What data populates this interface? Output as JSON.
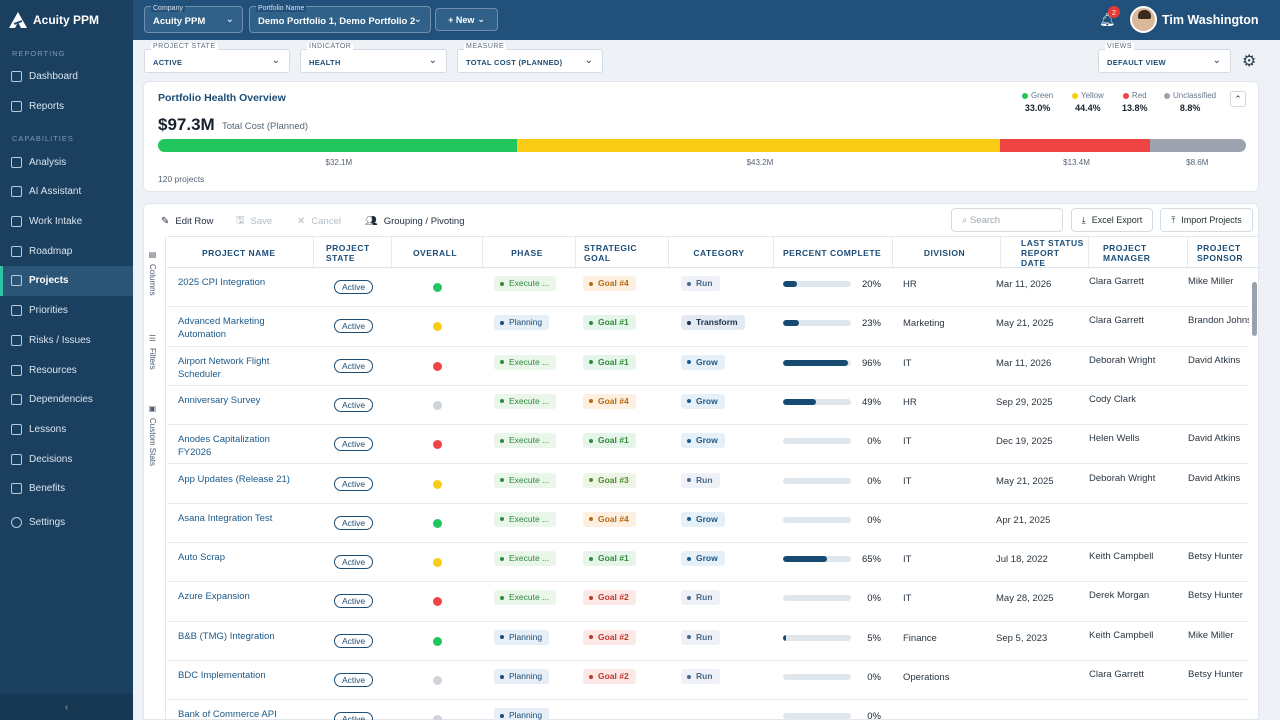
{
  "app": {
    "name": "Acuity PPM"
  },
  "sidebar": {
    "sections": [
      "REPORTING",
      "CAPABILITIES"
    ],
    "reporting": [
      {
        "label": "Dashboard"
      },
      {
        "label": "Reports"
      }
    ],
    "capabilities": [
      {
        "label": "Analysis"
      },
      {
        "label": "AI Assistant"
      },
      {
        "label": "Work Intake"
      },
      {
        "label": "Roadmap"
      },
      {
        "label": "Projects",
        "active": true
      },
      {
        "label": "Priorities"
      },
      {
        "label": "Risks / Issues"
      },
      {
        "label": "Resources"
      },
      {
        "label": "Dependencies"
      },
      {
        "label": "Lessons"
      },
      {
        "label": "Decisions"
      },
      {
        "label": "Benefits"
      }
    ],
    "settings": "Settings",
    "collapse": "‹"
  },
  "topbar": {
    "company_label": "Company",
    "company": "Acuity PPM",
    "portfolio_label": "Portfolio Name",
    "portfolio": "Demo Portfolio 1, Demo Portfolio 2",
    "new_button": "+ New",
    "notifications": "2",
    "user": "Tim Washington"
  },
  "filters": {
    "project_state": {
      "label": "PROJECT STATE",
      "value": "ACTIVE"
    },
    "indicator": {
      "label": "INDICATOR",
      "value": "HEALTH"
    },
    "measure": {
      "label": "MEASURE",
      "value": "TOTAL COST (PLANNED)"
    },
    "views": {
      "label": "VIEWS",
      "value": "DEFAULT VIEW"
    }
  },
  "health": {
    "title": "Portfolio Health Overview",
    "total": "$97.3M",
    "total_label": "Total Cost (Planned)",
    "count": "120 projects",
    "segments": [
      {
        "name": "Green",
        "pct": "33.0%",
        "value": "$32.1M",
        "frac": 0.33,
        "color": "#22c55e"
      },
      {
        "name": "Yellow",
        "pct": "44.4%",
        "value": "$43.2M",
        "frac": 0.444,
        "color": "#facc15"
      },
      {
        "name": "Red",
        "pct": "13.8%",
        "value": "$13.4M",
        "frac": 0.138,
        "color": "#ef4444"
      },
      {
        "name": "Unclassified",
        "pct": "8.8%",
        "value": "$8.6M",
        "frac": 0.088,
        "color": "#9ca3af"
      }
    ]
  },
  "toolbar": {
    "edit": "Edit Row",
    "save": "Save",
    "cancel": "Cancel",
    "grouping": "Grouping / Pivoting",
    "search_placeholder": "Search",
    "excel": "Excel Export",
    "import": "Import Projects"
  },
  "sidetabs": [
    "Columns",
    "Filters",
    "Custom Stats"
  ],
  "columns": [
    "PROJECT NAME",
    "PROJECT STATE",
    "OVERALL",
    "PHASE",
    "STRATEGIC GOAL",
    "CATEGORY",
    "PERCENT COMPLETE",
    "DIVISION",
    "LAST STATUS REPORT DATE",
    "PROJECT MANAGER",
    "PROJECT SPONSOR"
  ],
  "colors": {
    "green": "#22c55e",
    "yellow": "#facc15",
    "red": "#ef4444",
    "grey": "#cfd4da"
  },
  "rows": [
    {
      "name": "2025 CPI Integration",
      "state": "Active",
      "overall": "green",
      "phase": "Execute ...",
      "goal": "Goal #4",
      "category": "Run",
      "pct": 20,
      "pct_label": "20%",
      "division": "HR",
      "date": "Mar 11, 2026",
      "manager": "Clara Garrett",
      "sponsor": "Mike Miller"
    },
    {
      "name": "Advanced Marketing Automation",
      "state": "Active",
      "overall": "yellow",
      "phase": "Planning",
      "goal": "Goal #1",
      "category": "Transform",
      "pct": 23,
      "pct_label": "23%",
      "division": "Marketing",
      "date": "May 21, 2025",
      "manager": "Clara Garrett",
      "sponsor": "Brandon Johns"
    },
    {
      "name": "Airport Network Flight Scheduler",
      "state": "Active",
      "overall": "red",
      "phase": "Execute ...",
      "goal": "Goal #1",
      "category": "Grow",
      "pct": 96,
      "pct_label": "96%",
      "division": "IT",
      "date": "Mar 11, 2026",
      "manager": "Deborah Wright",
      "sponsor": "David Atkins"
    },
    {
      "name": "Anniversary Survey",
      "state": "Active",
      "overall": "grey",
      "phase": "Execute ...",
      "goal": "Goal #4",
      "category": "Grow",
      "pct": 49,
      "pct_label": "49%",
      "division": "HR",
      "date": "Sep 29, 2025",
      "manager": "Cody Clark",
      "sponsor": ""
    },
    {
      "name": "Anodes Capitalization FY2026",
      "state": "Active",
      "overall": "red",
      "phase": "Execute ...",
      "goal": "Goal #1",
      "category": "Grow",
      "pct": 0,
      "pct_label": "0%",
      "division": "IT",
      "date": "Dec 19, 2025",
      "manager": "Helen Wells",
      "sponsor": "David Atkins"
    },
    {
      "name": "App Updates (Release 21)",
      "state": "Active",
      "overall": "yellow",
      "phase": "Execute ...",
      "goal": "Goal #3",
      "category": "Run",
      "pct": 0,
      "pct_label": "0%",
      "division": "IT",
      "date": "May 21, 2025",
      "manager": "Deborah Wright",
      "sponsor": "David Atkins"
    },
    {
      "name": "Asana Integration Test",
      "state": "Active",
      "overall": "green",
      "phase": "Execute ...",
      "goal": "Goal #4",
      "category": "Grow",
      "pct": 0,
      "pct_label": "0%",
      "division": "",
      "date": "Apr 21, 2025",
      "manager": "",
      "sponsor": ""
    },
    {
      "name": "Auto Scrap",
      "state": "Active",
      "overall": "yellow",
      "phase": "Execute ...",
      "goal": "Goal #1",
      "category": "Grow",
      "pct": 65,
      "pct_label": "65%",
      "division": "IT",
      "date": "Jul 18, 2022",
      "manager": "Keith Campbell",
      "sponsor": "Betsy Hunter"
    },
    {
      "name": "Azure Expansion",
      "state": "Active",
      "overall": "red",
      "phase": "Execute ...",
      "goal": "Goal #2",
      "category": "Run",
      "pct": 0,
      "pct_label": "0%",
      "division": "IT",
      "date": "May 28, 2025",
      "manager": "Derek Morgan",
      "sponsor": "Betsy Hunter"
    },
    {
      "name": "B&B (TMG) Integration",
      "state": "Active",
      "overall": "green",
      "phase": "Planning",
      "goal": "Goal #2",
      "category": "Run",
      "pct": 5,
      "pct_label": "5%",
      "division": "Finance",
      "date": "Sep 5, 2023",
      "manager": "Keith Campbell",
      "sponsor": "Mike Miller"
    },
    {
      "name": "BDC Implementation",
      "state": "Active",
      "overall": "grey",
      "phase": "Planning",
      "goal": "Goal #2",
      "category": "Run",
      "pct": 0,
      "pct_label": "0%",
      "division": "Operations",
      "date": "",
      "manager": "Clara Garrett",
      "sponsor": "Betsy Hunter"
    },
    {
      "name": "Bank of Commerce API",
      "state": "Active",
      "overall": "grey",
      "phase": "Planning",
      "goal": "",
      "category": "",
      "pct": 0,
      "pct_label": "0%",
      "division": "",
      "date": "",
      "manager": "",
      "sponsor": ""
    }
  ]
}
